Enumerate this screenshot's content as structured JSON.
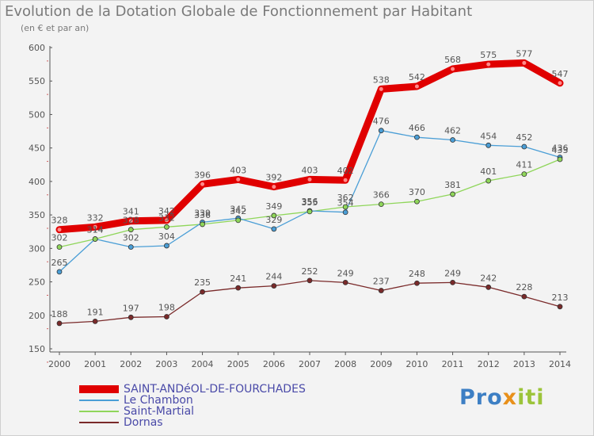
{
  "title": "Evolution de la Dotation Globale de Fonctionnement par Habitant",
  "subtitle": "(en € et par an)",
  "logo": "Proxiti",
  "chart_data": {
    "type": "line",
    "x": [
      2000,
      2001,
      2002,
      2003,
      2004,
      2005,
      2006,
      2007,
      2008,
      2009,
      2010,
      2011,
      2012,
      2013,
      2014
    ],
    "ylim": [
      150,
      600
    ],
    "yticks": [
      150,
      200,
      250,
      300,
      350,
      400,
      450,
      500,
      550,
      600
    ],
    "xlabel": "",
    "ylabel": "",
    "grid": false,
    "legend": "bottom-left",
    "series": [
      {
        "name": "SAINT-ANDéOL-DE-FOURCHADES",
        "color": "#e00000",
        "values": [
          328,
          332,
          341,
          342,
          396,
          403,
          392,
          403,
          402,
          538,
          542,
          568,
          575,
          577,
          547
        ]
      },
      {
        "name": "Le Chambon",
        "color": "#4a9ed6",
        "values": [
          265,
          314,
          302,
          304,
          339,
          345,
          329,
          356,
          354,
          476,
          466,
          462,
          454,
          452,
          436
        ]
      },
      {
        "name": "Saint-Martial",
        "color": "#8fd65a",
        "values": [
          302,
          314,
          328,
          332,
          336,
          342,
          349,
          355,
          362,
          366,
          370,
          381,
          401,
          411,
          433
        ]
      },
      {
        "name": "Dornas",
        "color": "#7a2a2a",
        "values": [
          188,
          191,
          197,
          198,
          235,
          241,
          244,
          252,
          249,
          237,
          248,
          249,
          242,
          228,
          213
        ]
      }
    ]
  }
}
